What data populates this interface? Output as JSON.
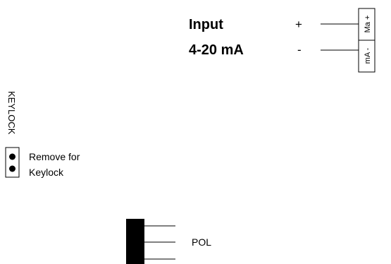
{
  "input": {
    "title_line1": "Input",
    "title_line2": "4-20 mA",
    "plus_sign": "+",
    "minus_sign": "-",
    "terminal_top": "Ma +",
    "terminal_bottom": "mA -"
  },
  "keylock": {
    "vertical_label": "KEYLOCK",
    "remove_line1": "Remove for",
    "remove_line2": "Keylock"
  },
  "pol": {
    "label": "POL"
  }
}
